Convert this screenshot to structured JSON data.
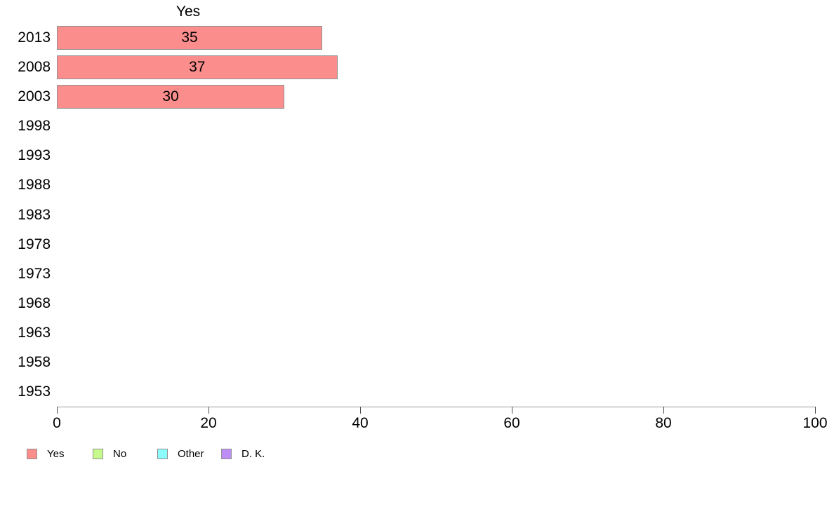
{
  "chart_data": {
    "type": "bar",
    "orientation": "horizontal",
    "title": "Yes",
    "categories": [
      "2013",
      "2008",
      "2003",
      "1998",
      "1993",
      "1988",
      "1983",
      "1978",
      "1973",
      "1968",
      "1963",
      "1958",
      "1953"
    ],
    "values": [
      35,
      37,
      30,
      null,
      null,
      null,
      null,
      null,
      null,
      null,
      null,
      null,
      null
    ],
    "value_labels_inside_bars": true,
    "xlabel": "",
    "ylabel": "",
    "xlim": [
      0,
      100
    ],
    "x_ticks": [
      0,
      20,
      40,
      60,
      80,
      100
    ],
    "grid": false,
    "legend_position": "bottom-left",
    "legend": [
      {
        "label": "Yes",
        "color": "#FC8D8D"
      },
      {
        "label": "No",
        "color": "#C6FA8C"
      },
      {
        "label": "Other",
        "color": "#8CFCFC"
      },
      {
        "label": "D. K.",
        "color": "#BE8CF5"
      }
    ],
    "series_color": "#FC8D8D",
    "bar_border_color": "#919191",
    "axis_line_color": "#999999",
    "tick_color": "#4d4d4d",
    "text_color": "#000000",
    "background_color": "#FFFFFF"
  }
}
